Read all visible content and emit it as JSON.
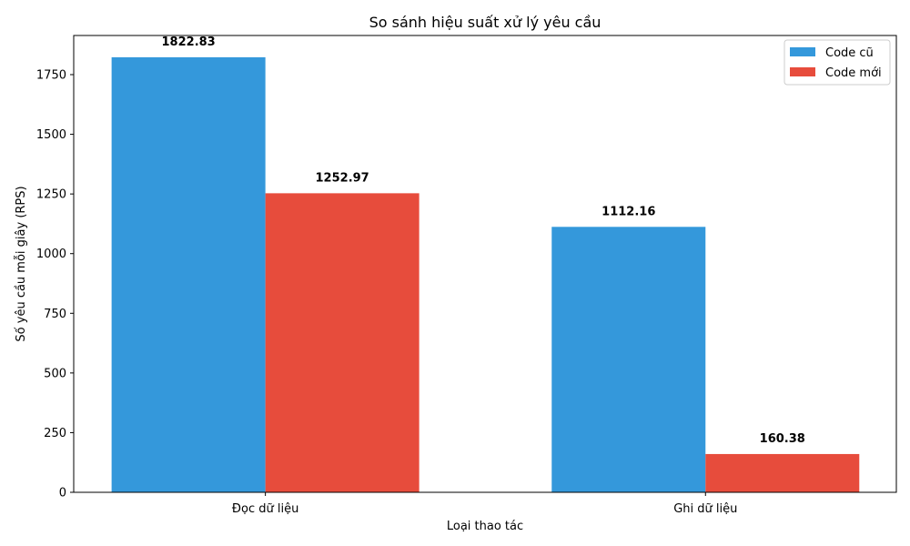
{
  "chart_data": {
    "type": "bar",
    "title": "So sánh hiệu suất xử lý yêu cầu",
    "xlabel": "Loại thao tác",
    "ylabel": "Số yêu cầu mỗi giây (RPS)",
    "categories": [
      "Đọc dữ liệu",
      "Ghi dữ liệu"
    ],
    "series": [
      {
        "name": "Code cũ",
        "values": [
          1822.83,
          1112.16
        ],
        "color": "#3498db",
        "labels": [
          "1822.83",
          "1112.16"
        ]
      },
      {
        "name": "Code mới",
        "values": [
          1252.97,
          160.38
        ],
        "color": "#e74c3c",
        "labels": [
          "1252.97",
          "160.38"
        ]
      }
    ],
    "ylim": [
      0,
      1913.97
    ],
    "yticks": [
      0,
      250,
      500,
      750,
      1000,
      1250,
      1500,
      1750
    ],
    "ytick_labels": [
      "0",
      "250",
      "500",
      "750",
      "1000",
      "1250",
      "1500",
      "1750"
    ],
    "grid": false,
    "legend": "top-right"
  }
}
